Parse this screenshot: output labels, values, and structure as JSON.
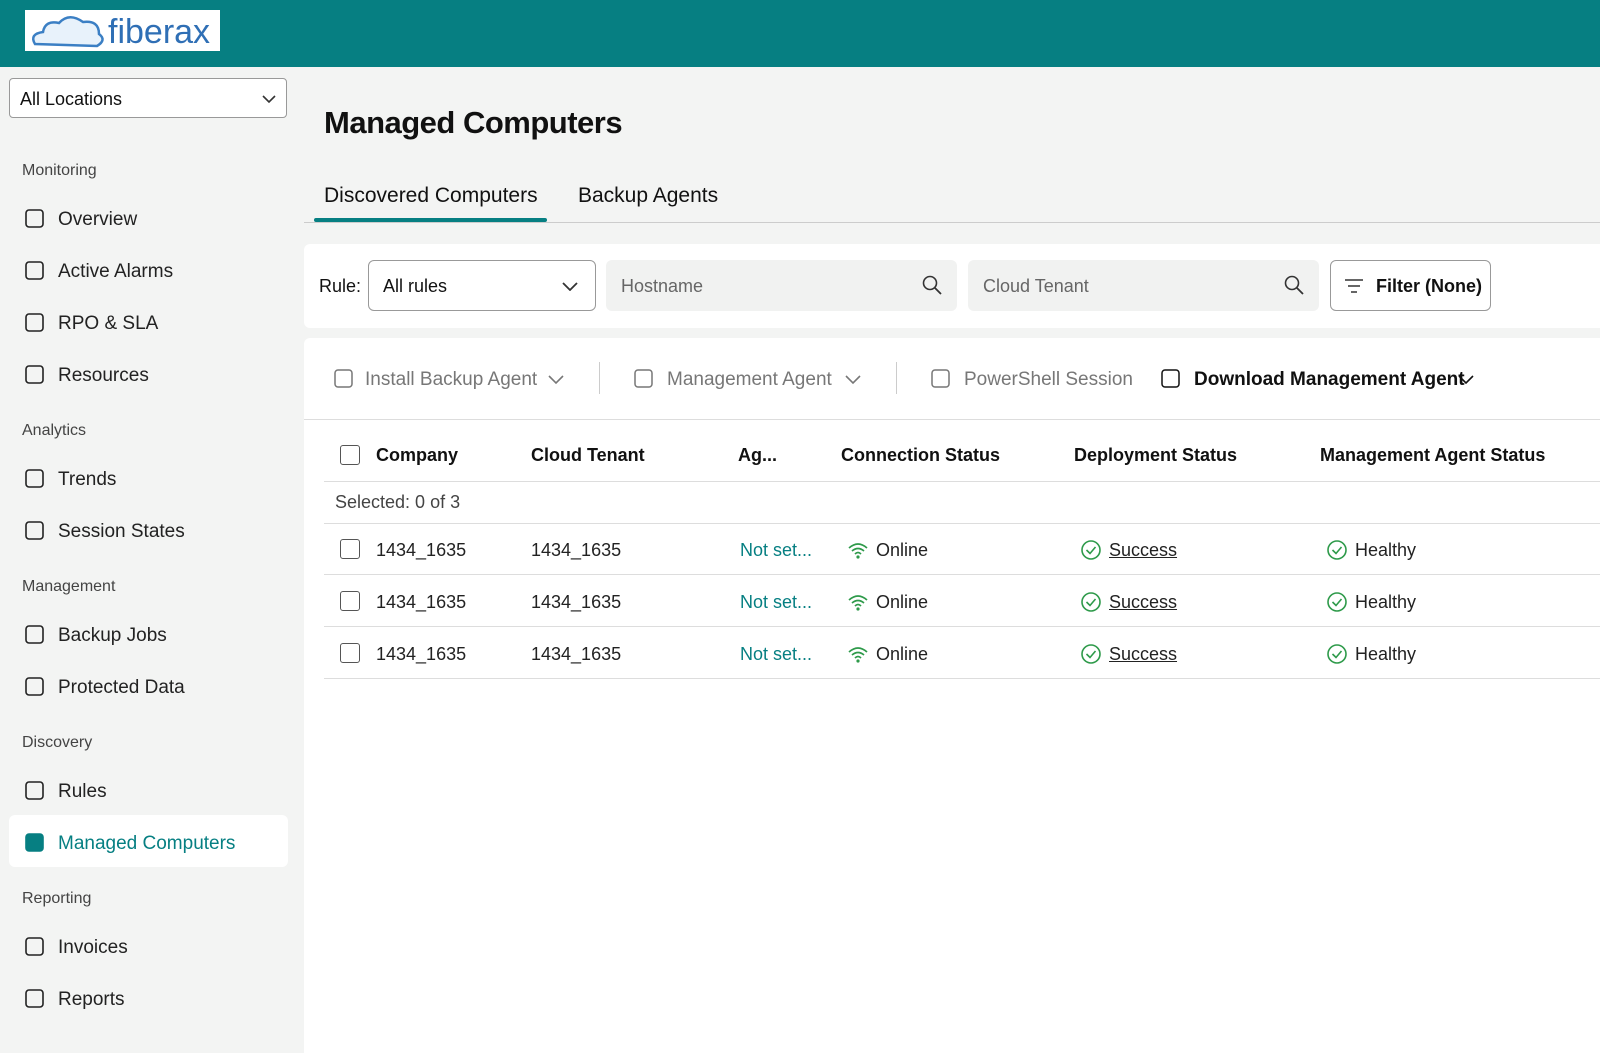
{
  "header": {
    "logo": "fiberax"
  },
  "location_select": "All Locations",
  "sidebar": [
    {
      "section": "Monitoring",
      "items": [
        "Overview",
        "Active Alarms",
        "RPO & SLA",
        "Resources"
      ]
    },
    {
      "section": "Analytics",
      "items": [
        "Trends",
        "Session States"
      ]
    },
    {
      "section": "Management",
      "items": [
        "Backup Jobs",
        "Protected Data"
      ]
    },
    {
      "section": "Discovery",
      "items": [
        "Rules",
        "Managed Computers"
      ]
    },
    {
      "section": "Reporting",
      "items": [
        "Invoices",
        "Reports"
      ]
    }
  ],
  "page_title": "Managed Computers",
  "tabs": [
    "Discovered Computers",
    "Backup Agents"
  ],
  "filters": {
    "rule_label": "Rule:",
    "rule_value": "All rules",
    "hostname_placeholder": "Hostname",
    "tenant_placeholder": "Cloud Tenant",
    "filter_button": "Filter (None)"
  },
  "toolbar": [
    "Install Backup Agent",
    "Management Agent",
    "PowerShell Session",
    "Download Management Agent"
  ],
  "table": {
    "columns": [
      "Company",
      "Cloud Tenant",
      "Ag...",
      "Connection Status",
      "Deployment Status",
      "Management Agent Status"
    ],
    "selection": "Selected: 0 of 3",
    "rows": [
      [
        "1434_1635",
        "1434_1635",
        "Not set...",
        "Online",
        "Success",
        "Healthy"
      ],
      [
        "1434_1635",
        "1434_1635",
        "Not set...",
        "Online",
        "Success",
        "Healthy"
      ],
      [
        "1434_1635",
        "1434_1635",
        "Not set...",
        "Online",
        "Success",
        "Healthy"
      ]
    ]
  }
}
